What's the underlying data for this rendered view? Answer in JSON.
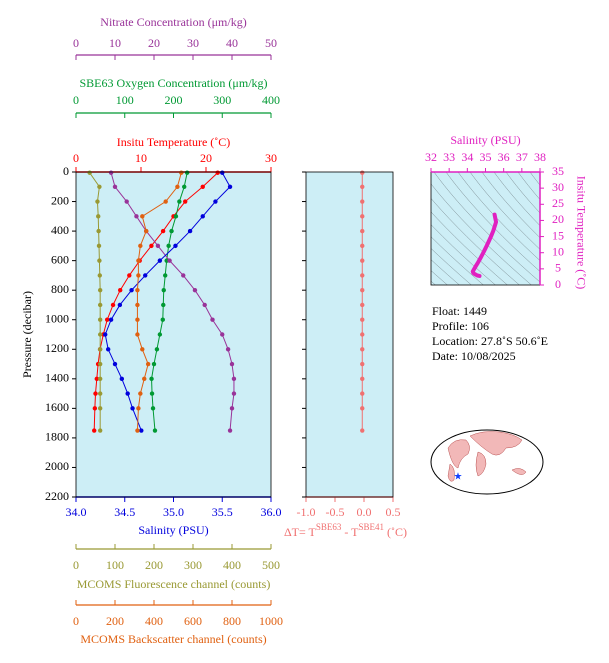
{
  "chart_data": [
    {
      "type": "profile",
      "ylabel": "Pressure (decibar)",
      "pressure": [
        5,
        100,
        200,
        300,
        400,
        500,
        600,
        700,
        800,
        900,
        1000,
        1100,
        1200,
        1300,
        1400,
        1500,
        1600,
        1750
      ],
      "ylim": [
        0,
        2200
      ],
      "yticks": [
        0,
        200,
        400,
        600,
        800,
        1000,
        1200,
        1400,
        1600,
        1800,
        2000,
        2200
      ],
      "series": [
        {
          "name": "Insitu Temperature (˚C)",
          "color": "#ff0000",
          "side": "top",
          "xlim": [
            0,
            30
          ],
          "xticks": [
            0,
            10,
            20,
            30
          ],
          "values": [
            21.8,
            19.5,
            16.8,
            15.0,
            13.4,
            11.6,
            9.8,
            8.2,
            6.8,
            5.7,
            4.8,
            4.2,
            3.7,
            3.4,
            3.2,
            3.0,
            2.9,
            2.8
          ]
        },
        {
          "name": "SBE63 Oxygen Concentration (μm/kg)",
          "color": "#009933",
          "side": "top",
          "xlim": [
            0,
            400
          ],
          "xticks": [
            0,
            100,
            200,
            300,
            400
          ],
          "values": [
            228,
            222,
            212,
            205,
            196,
            190,
            186,
            183,
            180,
            179,
            178,
            172,
            166,
            160,
            155,
            156,
            158,
            162
          ]
        },
        {
          "name": "Nitrate Concentration (μm/kg)",
          "color": "#993399",
          "side": "top",
          "xlim": [
            0,
            50
          ],
          "xticks": [
            0,
            10,
            20,
            30,
            40,
            50
          ],
          "values": [
            9.0,
            10.0,
            13.0,
            15.5,
            18.0,
            21.0,
            24.0,
            27.5,
            30.5,
            33.0,
            35.0,
            37.5,
            39.0,
            40.0,
            40.5,
            40.5,
            40.0,
            39.5
          ]
        },
        {
          "name": "Salinity (PSU)",
          "color": "#0000dd",
          "side": "bottom",
          "xlim": [
            34,
            36
          ],
          "xticks": [
            {
              "value": 34,
              "label": "34.0"
            },
            34.5,
            {
              "value": 35,
              "label": "35.0"
            },
            35.5,
            {
              "value": 36,
              "label": "36.0"
            }
          ],
          "values": [
            35.5,
            35.58,
            35.43,
            35.3,
            35.17,
            35.02,
            34.86,
            34.71,
            34.57,
            34.45,
            34.36,
            34.3,
            34.33,
            34.4,
            34.47,
            34.53,
            34.58,
            34.67
          ]
        },
        {
          "name": "MCOMS Fluorescence channel (counts)",
          "color": "#999933",
          "side": "bottom",
          "xlim": [
            0,
            500
          ],
          "xticks": [
            0,
            100,
            200,
            300,
            400,
            500
          ],
          "values": [
            35,
            60,
            55,
            57,
            58,
            59,
            60,
            61,
            62,
            62,
            62,
            62,
            62,
            62,
            62,
            62,
            62,
            62
          ]
        },
        {
          "name": "MCOMS Backscatter channel (counts)",
          "color": "#e06010",
          "side": "bottom",
          "xlim": [
            0,
            1000
          ],
          "xticks": [
            0,
            200,
            400,
            600,
            800,
            1000
          ],
          "values": [
            540,
            520,
            460,
            340,
            360,
            330,
            320,
            320,
            315,
            315,
            315,
            315,
            340,
            370,
            350,
            330,
            320,
            315
          ]
        }
      ]
    },
    {
      "type": "profile",
      "xlabel": [
        "ΔT= T",
        "SBE63",
        " - T",
        "SBE41",
        " (˚C)"
      ],
      "pressure": [
        5,
        100,
        200,
        300,
        400,
        500,
        600,
        700,
        800,
        900,
        1000,
        1100,
        1200,
        1300,
        1400,
        1500,
        1600,
        1750
      ],
      "ylim": [
        0,
        2200
      ],
      "yticks": [
        0,
        200,
        400,
        600,
        800,
        1000,
        1200,
        1400,
        1600,
        1800,
        2000,
        2200
      ],
      "series": [
        {
          "color": "#f07070",
          "side": "bottom",
          "xlim": [
            -1,
            0.5
          ],
          "xticks": [
            {
              "value": -1,
              "label": "-1.0"
            },
            -0.5,
            {
              "value": 0,
              "label": "0.0"
            },
            0.5
          ],
          "values": [
            -0.03,
            -0.03,
            -0.03,
            -0.03,
            -0.03,
            -0.03,
            -0.03,
            -0.03,
            -0.03,
            -0.03,
            -0.03,
            -0.03,
            -0.03,
            -0.03,
            -0.03,
            -0.03,
            -0.03,
            -0.03
          ]
        }
      ]
    },
    {
      "type": "ts",
      "xlabel": "Salinity (PSU)",
      "ylabel": "Insitu Temperature (˚C)",
      "color": "#e020c0",
      "xlim": [
        32,
        38
      ],
      "xticks": [
        32,
        33,
        34,
        35,
        36,
        37,
        38
      ],
      "ylim": [
        0,
        35
      ],
      "yticks": [
        0,
        5,
        10,
        15,
        20,
        25,
        30,
        35
      ],
      "x": [
        35.5,
        35.58,
        35.43,
        35.3,
        35.17,
        35.02,
        34.86,
        34.71,
        34.57,
        34.45,
        34.36,
        34.3,
        34.33,
        34.4,
        34.47,
        34.53,
        34.58,
        34.67
      ],
      "values": [
        21.8,
        19.5,
        16.8,
        15.0,
        13.4,
        11.6,
        9.8,
        8.2,
        6.8,
        5.7,
        4.8,
        4.2,
        3.7,
        3.4,
        3.2,
        3.0,
        2.9,
        2.8
      ]
    }
  ],
  "info": {
    "lines": [
      "Float:  1449",
      "Profile:  106",
      "Location:  27.8˚S  50.6˚E",
      "Date:  10/08/2025"
    ]
  }
}
